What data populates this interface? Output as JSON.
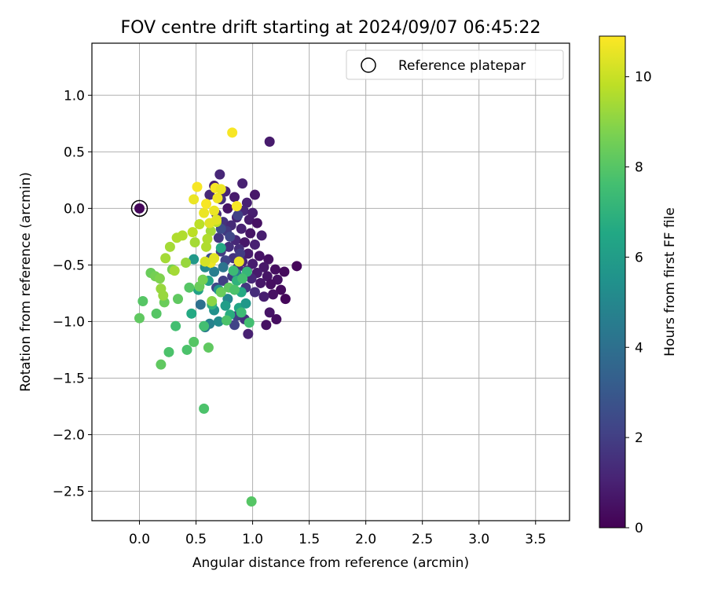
{
  "chart_data": {
    "type": "scatter",
    "title": "FOV centre drift starting at 2024/09/07 06:45:22",
    "xlabel": "Angular distance from reference (arcmin)",
    "ylabel": "Rotation from reference (arcmin)",
    "xlim": [
      -0.42,
      3.8
    ],
    "ylim": [
      -2.76,
      1.46
    ],
    "xticks": [
      "0.0",
      "0.5",
      "1.0",
      "1.5",
      "2.0",
      "2.5",
      "3.0",
      "3.5"
    ],
    "yticks": [
      "1.0",
      "0.5",
      "0.0",
      "−0.5",
      "−1.0",
      "−1.5",
      "−2.0",
      "−2.5"
    ],
    "grid": true,
    "legend": {
      "placement": "top-right",
      "entries": [
        "Reference platepar"
      ]
    },
    "reference_point": {
      "x": 0.0,
      "y": 0.0,
      "hours": 0.2
    },
    "colorbar": {
      "label": "Hours from first FF file",
      "colormap": "viridis",
      "range": [
        0,
        10.9
      ],
      "ticks": [
        "0",
        "2",
        "4",
        "6",
        "8",
        "10"
      ]
    },
    "points": [
      [
        1.15,
        0.59,
        0.8
      ],
      [
        0.82,
        0.67,
        10.8
      ],
      [
        0.71,
        0.3,
        1.2
      ],
      [
        0.91,
        0.22,
        1.0
      ],
      [
        0.66,
        0.2,
        0.9
      ],
      [
        0.76,
        0.15,
        1.1
      ],
      [
        1.02,
        0.12,
        0.7
      ],
      [
        0.62,
        0.12,
        1.3
      ],
      [
        0.84,
        0.1,
        0.8
      ],
      [
        0.72,
        0.08,
        1.5
      ],
      [
        0.95,
        0.05,
        1.0
      ],
      [
        0.78,
        0.0,
        0.6
      ],
      [
        0.92,
        -0.02,
        1.2
      ],
      [
        1.0,
        -0.04,
        0.9
      ],
      [
        0.68,
        -0.05,
        1.4
      ],
      [
        0.86,
        -0.08,
        1.1
      ],
      [
        0.97,
        -0.1,
        0.8
      ],
      [
        0.74,
        -0.12,
        1.6
      ],
      [
        1.04,
        -0.13,
        0.5
      ],
      [
        0.81,
        -0.15,
        1.3
      ],
      [
        0.9,
        -0.18,
        1.0
      ],
      [
        0.77,
        -0.2,
        1.8
      ],
      [
        0.98,
        -0.22,
        0.6
      ],
      [
        1.08,
        -0.24,
        0.9
      ],
      [
        0.7,
        -0.26,
        1.7
      ],
      [
        0.85,
        -0.28,
        1.2
      ],
      [
        0.93,
        -0.3,
        0.7
      ],
      [
        1.02,
        -0.32,
        1.0
      ],
      [
        0.79,
        -0.34,
        1.5
      ],
      [
        0.88,
        -0.36,
        1.4
      ],
      [
        0.72,
        -0.38,
        1.9
      ],
      [
        0.96,
        -0.4,
        0.8
      ],
      [
        1.06,
        -0.42,
        0.6
      ],
      [
        1.14,
        -0.45,
        0.5
      ],
      [
        0.83,
        -0.44,
        1.6
      ],
      [
        0.91,
        -0.47,
        1.1
      ],
      [
        1.0,
        -0.49,
        0.9
      ],
      [
        1.1,
        -0.52,
        0.7
      ],
      [
        1.2,
        -0.54,
        0.4
      ],
      [
        1.28,
        -0.56,
        0.3
      ],
      [
        1.39,
        -0.51,
        0.2
      ],
      [
        0.87,
        -0.52,
        1.3
      ],
      [
        0.95,
        -0.55,
        1.0
      ],
      [
        1.04,
        -0.57,
        0.8
      ],
      [
        1.13,
        -0.6,
        0.6
      ],
      [
        1.22,
        -0.63,
        0.5
      ],
      [
        1.16,
        -0.67,
        0.4
      ],
      [
        1.07,
        -0.66,
        0.7
      ],
      [
        0.99,
        -0.62,
        1.2
      ],
      [
        1.25,
        -0.72,
        0.3
      ],
      [
        1.18,
        -0.76,
        0.5
      ],
      [
        1.29,
        -0.8,
        0.2
      ],
      [
        1.1,
        -0.78,
        0.9
      ],
      [
        1.02,
        -0.74,
        1.4
      ],
      [
        0.94,
        -0.7,
        1.7
      ],
      [
        1.15,
        -0.92,
        0.6
      ],
      [
        1.21,
        -0.98,
        0.4
      ],
      [
        1.12,
        -1.03,
        0.5
      ],
      [
        0.86,
        -0.95,
        2.0
      ],
      [
        0.84,
        -1.03,
        2.2
      ],
      [
        0.96,
        -1.11,
        1.0
      ],
      [
        0.93,
        -0.98,
        1.5
      ],
      [
        0.68,
        -0.7,
        2.4
      ],
      [
        0.74,
        -0.64,
        2.0
      ],
      [
        0.82,
        -0.6,
        1.8
      ],
      [
        0.63,
        -0.44,
        2.6
      ],
      [
        0.76,
        -0.46,
        2.2
      ],
      [
        0.89,
        -0.4,
        1.9
      ],
      [
        0.8,
        -0.25,
        2.3
      ],
      [
        0.87,
        -0.06,
        2.1
      ],
      [
        0.72,
        -0.18,
        2.5
      ],
      [
        0.48,
        -0.45,
        5.8
      ],
      [
        0.58,
        -0.52,
        5.2
      ],
      [
        0.66,
        -0.56,
        4.6
      ],
      [
        0.74,
        -0.52,
        4.2
      ],
      [
        0.86,
        -0.58,
        4.4
      ],
      [
        0.61,
        -0.64,
        6.2
      ],
      [
        0.7,
        -0.72,
        5.6
      ],
      [
        0.78,
        -0.8,
        5.0
      ],
      [
        0.9,
        -0.74,
        6.6
      ],
      [
        0.54,
        -0.85,
        4.0
      ],
      [
        0.66,
        -0.9,
        5.4
      ],
      [
        0.76,
        -0.86,
        6.0
      ],
      [
        0.88,
        -0.88,
        6.4
      ],
      [
        0.62,
        -1.02,
        4.8
      ],
      [
        0.7,
        -1.0,
        5.2
      ],
      [
        0.58,
        -1.05,
        4.4
      ],
      [
        0.94,
        -0.84,
        5.8
      ],
      [
        0.8,
        -0.94,
        6.8
      ],
      [
        0.52,
        -0.72,
        6.2
      ],
      [
        0.72,
        -0.35,
        6.6
      ],
      [
        0.46,
        -0.93,
        6.6
      ],
      [
        0.64,
        -0.85,
        7.0
      ],
      [
        0.86,
        -0.64,
        7.0
      ],
      [
        0.95,
        -0.56,
        7.2
      ],
      [
        0.0,
        -0.97,
        8.2
      ],
      [
        0.03,
        -0.82,
        8.0
      ],
      [
        0.1,
        -0.57,
        8.4
      ],
      [
        0.14,
        -0.6,
        8.6
      ],
      [
        0.18,
        -0.62,
        8.8
      ],
      [
        0.15,
        -0.93,
        8.0
      ],
      [
        0.19,
        -1.38,
        8.2
      ],
      [
        0.22,
        -0.83,
        8.4
      ],
      [
        0.26,
        -1.27,
        7.8
      ],
      [
        0.29,
        -0.54,
        8.6
      ],
      [
        0.32,
        -1.04,
        7.6
      ],
      [
        0.34,
        -0.8,
        8.2
      ],
      [
        0.42,
        -1.25,
        7.8
      ],
      [
        0.48,
        -1.18,
        8.0
      ],
      [
        0.57,
        -1.04,
        7.6
      ],
      [
        0.61,
        -1.23,
        8.2
      ],
      [
        0.57,
        -1.77,
        7.8
      ],
      [
        0.99,
        -2.59,
        8.0
      ],
      [
        0.44,
        -0.7,
        8.0
      ],
      [
        0.53,
        -0.69,
        8.4
      ],
      [
        0.56,
        -0.63,
        8.6
      ],
      [
        0.64,
        -0.82,
        9.0
      ],
      [
        0.72,
        -0.74,
        8.4
      ],
      [
        0.79,
        -0.7,
        8.2
      ],
      [
        0.84,
        -0.72,
        7.8
      ],
      [
        0.77,
        -0.99,
        7.8
      ],
      [
        0.9,
        -0.92,
        7.4
      ],
      [
        0.97,
        -1.01,
        7.6
      ],
      [
        0.91,
        -0.62,
        7.6
      ],
      [
        0.83,
        -0.55,
        7.4
      ],
      [
        0.19,
        -0.71,
        9.2
      ],
      [
        0.21,
        -0.77,
        9.2
      ],
      [
        0.23,
        -0.44,
        9.4
      ],
      [
        0.27,
        -0.34,
        9.4
      ],
      [
        0.33,
        -0.26,
        9.6
      ],
      [
        0.38,
        -0.24,
        9.6
      ],
      [
        0.41,
        -0.48,
        9.2
      ],
      [
        0.47,
        -0.21,
        9.8
      ],
      [
        0.49,
        -0.3,
        9.4
      ],
      [
        0.53,
        -0.14,
        9.8
      ],
      [
        0.59,
        -0.34,
        9.6
      ],
      [
        0.63,
        -0.2,
        9.4
      ],
      [
        0.68,
        -0.12,
        9.8
      ],
      [
        0.6,
        -0.27,
        9.6
      ],
      [
        0.31,
        -0.55,
        9.4
      ],
      [
        0.48,
        0.08,
        10.6
      ],
      [
        0.51,
        0.19,
        10.8
      ],
      [
        0.57,
        -0.04,
        10.6
      ],
      [
        0.59,
        0.04,
        10.8
      ],
      [
        0.62,
        -0.13,
        10.4
      ],
      [
        0.66,
        -0.02,
        10.6
      ],
      [
        0.67,
        0.18,
        10.8
      ],
      [
        0.69,
        0.09,
        10.7
      ],
      [
        0.72,
        0.17,
        10.6
      ],
      [
        0.68,
        -0.1,
        10.4
      ],
      [
        0.86,
        0.02,
        10.8
      ],
      [
        0.88,
        -0.47,
        10.6
      ],
      [
        0.63,
        -0.48,
        10.6
      ],
      [
        0.66,
        -0.44,
        10.4
      ],
      [
        0.58,
        -0.47,
        10.2
      ]
    ]
  }
}
